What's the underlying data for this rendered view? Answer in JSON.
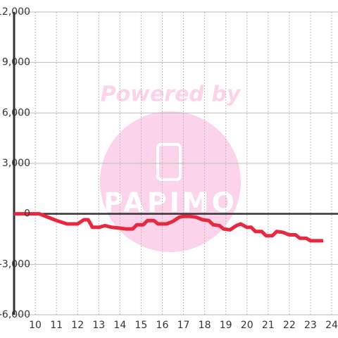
{
  "chart_data": {
    "type": "line",
    "watermark": {
      "top": "Powered by",
      "bottom": "PAPIMO"
    },
    "x": [
      9,
      9.5,
      10,
      10.2,
      10.5,
      11,
      11.5,
      12,
      12.3,
      12.5,
      12.7,
      13,
      13.3,
      13.6,
      14,
      14.3,
      14.6,
      14.8,
      15.1,
      15.3,
      15.6,
      15.8,
      16.2,
      16.5,
      16.8,
      17,
      17.3,
      17.6,
      17.9,
      18.2,
      18.4,
      18.7,
      18.9,
      19.2,
      19.5,
      19.7,
      20,
      20.2,
      20.4,
      20.7,
      20.9,
      21.2,
      21.4,
      21.7,
      22,
      22.3,
      22.5,
      22.8,
      23,
      23.6
    ],
    "series": [
      {
        "color": "#e8283f",
        "values": [
          0,
          0,
          0,
          0,
          -150,
          -400,
          -600,
          -600,
          -350,
          -350,
          -800,
          -800,
          -700,
          -800,
          -850,
          -900,
          -900,
          -650,
          -650,
          -400,
          -400,
          -600,
          -600,
          -450,
          -200,
          -150,
          -150,
          -200,
          -350,
          -400,
          -650,
          -700,
          -900,
          -950,
          -700,
          -600,
          -800,
          -800,
          -1050,
          -1050,
          -1300,
          -1300,
          -1050,
          -1100,
          -1250,
          -1250,
          -1450,
          -1450,
          -1600,
          -1600
        ]
      }
    ],
    "xlim": [
      9,
      24.3
    ],
    "xticks": [
      10,
      11,
      12,
      13,
      14,
      15,
      16,
      17,
      18,
      19,
      20,
      21,
      22,
      23,
      24
    ],
    "ylim": [
      -6000,
      12000
    ],
    "yticks": [
      {
        "value": -6000,
        "label": "-6,000"
      },
      {
        "value": -3000,
        "label": "-3,000"
      },
      0,
      {
        "value": 3000,
        "label": "3,000"
      },
      {
        "value": 6000,
        "label": "6,000"
      },
      {
        "value": 9000,
        "label": "9,000"
      },
      {
        "value": 12000,
        "label": "12,000"
      }
    ],
    "grid": true
  }
}
